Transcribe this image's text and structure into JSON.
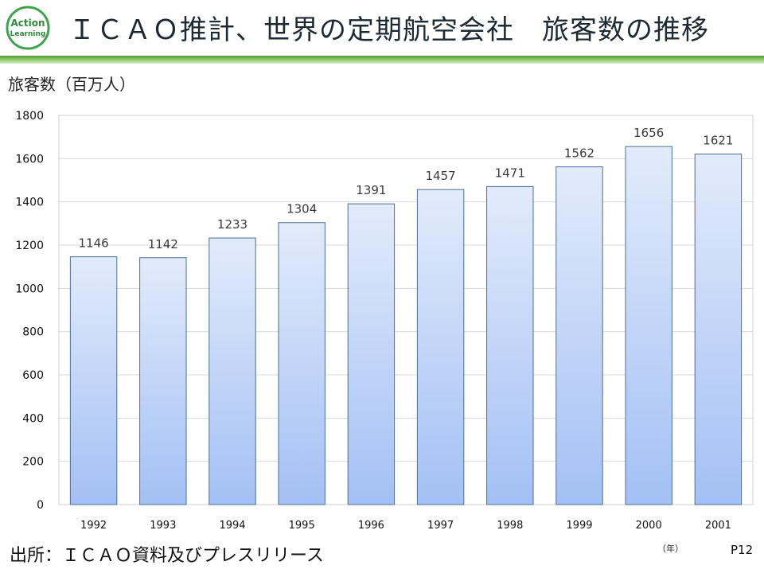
{
  "logo": {
    "line1": "Action",
    "line2": "Learning",
    "icon": "action-learning-badge"
  },
  "slide": {
    "title": "ＩＣＡＯ推計、世界の定期航空会社　旅客数の推移",
    "source": "出所：ＩＣＡＯ資料及びプレスリリース",
    "page_number": "P12"
  },
  "colors": {
    "bar_top": "#e2ebfb",
    "bar_bottom": "#a3c0f5",
    "bar_stroke": "#4a6f98",
    "rule_dark": "#4f9a3d",
    "rule_light": "#bfe39f"
  },
  "chart_data": {
    "type": "bar",
    "ylabel": "旅客数（百万人）",
    "xlabel": "（年）",
    "categories": [
      "1992",
      "1993",
      "1994",
      "1995",
      "1996",
      "1997",
      "1998",
      "1999",
      "2000",
      "2001"
    ],
    "values": [
      1146,
      1142,
      1233,
      1304,
      1391,
      1457,
      1471,
      1562,
      1656,
      1621
    ],
    "yticks": [
      "0",
      "200",
      "400",
      "600",
      "800",
      "1000",
      "1200",
      "1400",
      "1600",
      "1800"
    ],
    "ylim": [
      0,
      1800
    ],
    "grid": true,
    "legend": "none"
  }
}
